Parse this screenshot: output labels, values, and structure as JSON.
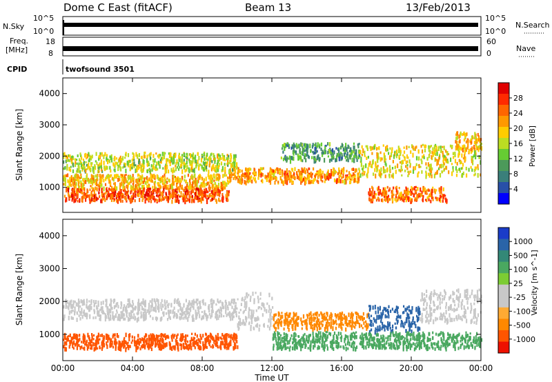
{
  "header": {
    "station": "Dome C East (fitACF)",
    "beam": "Beam 13",
    "date": "13/Feb/2013"
  },
  "top_panels": {
    "nsky": {
      "label": "N.Sky",
      "ticks": [
        "10^5",
        "10^0"
      ]
    },
    "nsearch": {
      "label": "N.Search",
      "ticks": [
        "10^5",
        "10^0"
      ]
    },
    "freq": {
      "label_line1": "Freq.",
      "label_line2": "[MHz]",
      "ticks": [
        "18",
        "8"
      ]
    },
    "nave": {
      "label": "Nave",
      "ticks": [
        "60",
        "0"
      ]
    },
    "cpid": {
      "label": "CPID",
      "program": "twofsound 3501"
    }
  },
  "chart_data": [
    {
      "type": "heatmap",
      "title": "",
      "quantity": "Power",
      "xlabel": "Time UT",
      "ylabel": "Slant Range [km]",
      "xticks": [
        "00:00",
        "04:00",
        "08:00",
        "12:00",
        "16:00",
        "20:00",
        "00:00"
      ],
      "xlim_hours": [
        0,
        24
      ],
      "yticks": [
        "1000",
        "2000",
        "3000",
        "4000"
      ],
      "ylim": [
        200,
        4500
      ],
      "colorbar": {
        "label": "Power [dB]",
        "ticks": [
          "28",
          "24",
          "20",
          "16",
          "12",
          "8",
          "4"
        ],
        "range": [
          0,
          32
        ],
        "colors": [
          "#0000ff",
          "#2850a8",
          "#3a7f7a",
          "#4c9a5a",
          "#66cc33",
          "#bbdd22",
          "#ffcc00",
          "#ff9900",
          "#ff6600",
          "#ff2a00",
          "#e00000"
        ]
      },
      "bands": [
        {
          "t0": 0,
          "t1": 10,
          "r0": 1550,
          "r1": 2150,
          "level": 16
        },
        {
          "t0": 0,
          "t1": 9.5,
          "r0": 1000,
          "r1": 1450,
          "level": 20
        },
        {
          "t0": 0,
          "t1": 9.5,
          "r0": 600,
          "r1": 1000,
          "level": 26
        },
        {
          "t0": 9.5,
          "t1": 17,
          "r0": 1200,
          "r1": 1650,
          "level": 22
        },
        {
          "t0": 12.5,
          "t1": 17,
          "r0": 1900,
          "r1": 2450,
          "level": 10
        },
        {
          "t0": 17,
          "t1": 24,
          "r0": 1400,
          "r1": 2400,
          "level": 18
        },
        {
          "t0": 17.5,
          "t1": 22,
          "r0": 600,
          "r1": 1050,
          "level": 24
        },
        {
          "t0": 22.5,
          "t1": 24,
          "r0": 2200,
          "r1": 2800,
          "level": 20
        }
      ]
    },
    {
      "type": "heatmap",
      "title": "",
      "quantity": "Velocity",
      "xlabel": "Time UT",
      "ylabel": "Slant Range [km]",
      "xticks": [
        "00:00",
        "04:00",
        "08:00",
        "12:00",
        "16:00",
        "20:00",
        "00:00"
      ],
      "xlim_hours": [
        0,
        24
      ],
      "yticks": [
        "1000",
        "2000",
        "3000",
        "4000"
      ],
      "ylim": [
        200,
        4500
      ],
      "colorbar": {
        "label": "Velocity [m s^-1]",
        "ticks": [
          "1000",
          "500",
          "100",
          "25",
          "-25",
          "-100",
          "-500",
          "-1000"
        ],
        "colors": [
          "#1a3cc8",
          "#2a64a8",
          "#338877",
          "#4aa860",
          "#7ccc33",
          "#c8c8c8",
          "#c8c8c8",
          "#ffaa33",
          "#ff8800",
          "#ff5500",
          "#ee1100"
        ]
      },
      "bands": [
        {
          "t0": 0,
          "t1": 10,
          "r0": 1500,
          "r1": 2100,
          "level": 0
        },
        {
          "t0": 0,
          "t1": 10,
          "r0": 600,
          "r1": 1050,
          "level": -300
        },
        {
          "t0": 10,
          "t1": 12,
          "r0": 1200,
          "r1": 2300,
          "level": 0
        },
        {
          "t0": 12,
          "t1": 17.5,
          "r0": 1200,
          "r1": 1700,
          "level": -150
        },
        {
          "t0": 17.5,
          "t1": 20.5,
          "r0": 1100,
          "r1": 1900,
          "level": 600
        },
        {
          "t0": 20.5,
          "t1": 24,
          "r0": 1400,
          "r1": 2400,
          "level": 0
        },
        {
          "t0": 12,
          "t1": 24,
          "r0": 600,
          "r1": 1100,
          "level": 150
        }
      ]
    }
  ]
}
